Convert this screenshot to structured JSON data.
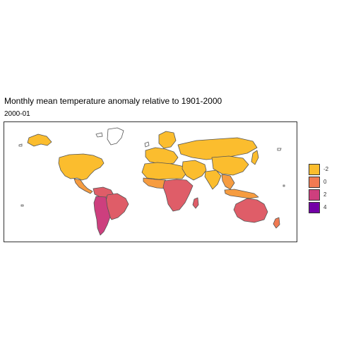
{
  "title": "Monthly mean temperature anomaly relative to 1901-2000",
  "subtitle": "2000-01",
  "colors": {
    "border": "#555555",
    "panel_border": "#333333"
  },
  "legend": {
    "items": [
      {
        "label": "-2",
        "color": "#fbbd2e"
      },
      {
        "label": "0",
        "color": "#f07a52"
      },
      {
        "label": "2",
        "color": "#cd3f7e"
      },
      {
        "label": "4",
        "color": "#7300a6"
      }
    ]
  },
  "regions": [
    {
      "name": "North America",
      "anomaly": -2
    },
    {
      "name": "Greenland",
      "anomaly": null
    },
    {
      "name": "Alaska",
      "anomaly": -2
    },
    {
      "name": "Central America",
      "anomaly": -1
    },
    {
      "name": "South America north",
      "anomaly": 1
    },
    {
      "name": "Brazil",
      "anomaly": 1
    },
    {
      "name": "Southern South America",
      "anomaly": 2
    },
    {
      "name": "Europe",
      "anomaly": -2
    },
    {
      "name": "Scandinavia",
      "anomaly": -2
    },
    {
      "name": "North Africa",
      "anomaly": -2
    },
    {
      "name": "West Africa",
      "anomaly": -1
    },
    {
      "name": "Central and Southern Africa",
      "anomaly": 1
    },
    {
      "name": "Madagascar",
      "anomaly": 1
    },
    {
      "name": "Middle East",
      "anomaly": -2
    },
    {
      "name": "Russia and Central Asia",
      "anomaly": -2
    },
    {
      "name": "China",
      "anomaly": -2
    },
    {
      "name": "India",
      "anomaly": -2
    },
    {
      "name": "Southeast Asia",
      "anomaly": -1
    },
    {
      "name": "Indonesia",
      "anomaly": -1
    },
    {
      "name": "Japan",
      "anomaly": -2
    },
    {
      "name": "Australia",
      "anomaly": 1
    },
    {
      "name": "New Zealand",
      "anomaly": 0
    }
  ]
}
